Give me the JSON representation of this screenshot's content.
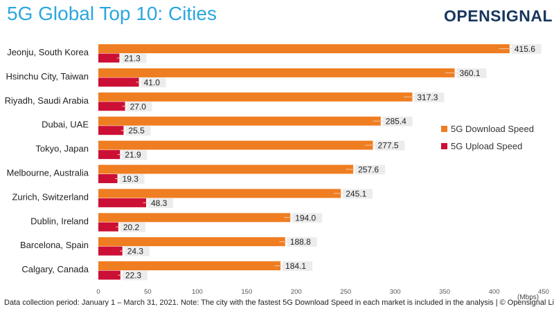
{
  "title": "5G Global Top 10: Cities",
  "logo": {
    "text": "OPENSIGNAL"
  },
  "footnote": "Data collection period: January 1 – March 31, 2021. Note: The city with the fastest 5G Download Speed in each market is included in the analysis | © Opensignal Limited",
  "colors": {
    "download": "#ef7d21",
    "upload": "#cc0f35",
    "title": "#2aa6de",
    "logo": "#17365d"
  },
  "chart_data": {
    "type": "bar",
    "orientation": "horizontal",
    "categories": [
      "Jeonju, South Korea",
      "Hsinchu City, Taiwan",
      "Riyadh, Saudi Arabia",
      "Dubai, UAE",
      "Tokyo, Japan",
      "Melbourne, Australia",
      "Zurich, Switzerland",
      "Dublin, Ireland",
      "Barcelona, Spain",
      "Calgary, Canada"
    ],
    "series": [
      {
        "name": "5G Download Speed",
        "color": "#ef7d21",
        "values": [
          415.6,
          360.1,
          317.3,
          285.4,
          277.5,
          257.6,
          245.1,
          194.0,
          188.8,
          184.1
        ]
      },
      {
        "name": "5G Upload Speed",
        "color": "#cc0f35",
        "values": [
          21.3,
          41.0,
          27.0,
          25.5,
          21.9,
          19.3,
          48.3,
          20.2,
          24.3,
          22.3
        ]
      }
    ],
    "xlim": [
      0,
      450
    ],
    "xticks": [
      0,
      50,
      100,
      150,
      200,
      250,
      300,
      350,
      400,
      450
    ],
    "unit_label": "(Mbps)",
    "legend_position": "right",
    "grid": false
  }
}
